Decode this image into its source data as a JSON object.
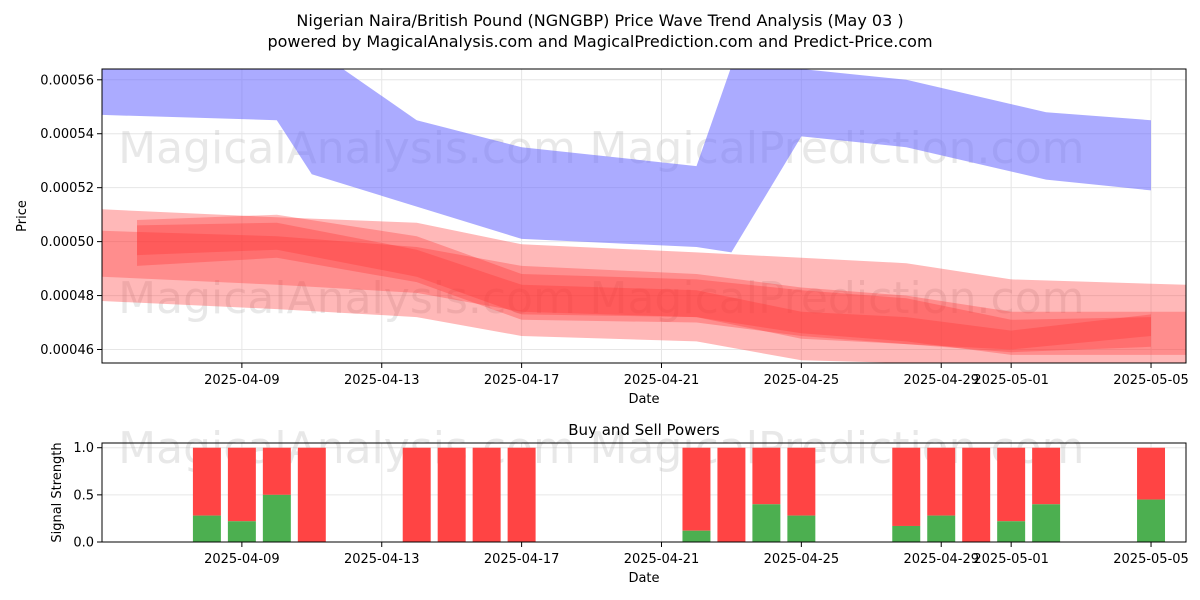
{
  "title_line1": "Nigerian Naira/British Pound (NGNGBP) Price Wave Trend Analysis (May 03 )",
  "title_line2": "powered by MagicalAnalysis.com and MagicalPrediction.com and Predict-Price.com",
  "watermarks": [
    "MagicalAnalysis.com",
    "MagicalPrediction.com"
  ],
  "colors": {
    "blue_band": "#6666ff",
    "red_band": "#ff3333",
    "buy": "#4caf50",
    "sell": "#ff4444",
    "grid": "#e6e6e6"
  },
  "chart_data": [
    {
      "type": "area",
      "title": "",
      "xlabel": "Date",
      "ylabel": "Price",
      "xlim": [
        "2025-04-05",
        "2025-05-06"
      ],
      "ylim": [
        0.000455,
        0.000564
      ],
      "grid": true,
      "x_tick_labels": [
        "2025-04-09",
        "2025-04-13",
        "2025-04-17",
        "2025-04-21",
        "2025-04-25",
        "2025-04-29",
        "2025-05-01",
        "2025-05-05"
      ],
      "y_tick_labels": [
        "0.00046",
        "0.00048",
        "0.00050",
        "0.00052",
        "0.00054",
        "0.00056"
      ],
      "blue_band": {
        "x": [
          "2025-04-05",
          "2025-04-10",
          "2025-04-11",
          "2025-04-14",
          "2025-04-17",
          "2025-04-22",
          "2025-04-23",
          "2025-04-25",
          "2025-04-28",
          "2025-05-02",
          "2025-05-05"
        ],
        "upper": [
          0.000572,
          0.000572,
          0.000572,
          0.000545,
          0.000535,
          0.000528,
          0.000565,
          0.000564,
          0.00056,
          0.000548,
          0.000545
        ],
        "lower": [
          0.000547,
          0.000545,
          0.000525,
          0.000513,
          0.000501,
          0.000498,
          0.000496,
          0.000539,
          0.000535,
          0.000523,
          0.000519
        ]
      },
      "red_bands": [
        {
          "x": [
            "2025-04-05",
            "2025-04-10",
            "2025-04-14",
            "2025-04-17",
            "2025-04-22",
            "2025-04-25",
            "2025-04-28",
            "2025-05-01",
            "2025-05-06"
          ],
          "upper": [
            0.000512,
            0.000509,
            0.000507,
            0.000499,
            0.000496,
            0.000494,
            0.000492,
            0.000486,
            0.000484
          ],
          "lower": [
            0.000478,
            0.000475,
            0.000472,
            0.000465,
            0.000463,
            0.000456,
            0.000455,
            0.000455,
            0.000455
          ]
        },
        {
          "x": [
            "2025-04-05",
            "2025-04-10",
            "2025-04-14",
            "2025-04-17",
            "2025-04-22",
            "2025-04-25",
            "2025-04-28",
            "2025-05-01",
            "2025-05-06"
          ],
          "upper": [
            0.000504,
            0.000502,
            0.000498,
            0.000491,
            0.000488,
            0.000483,
            0.00048,
            0.000474,
            0.000474
          ],
          "lower": [
            0.000487,
            0.000484,
            0.000481,
            0.000474,
            0.000472,
            0.000466,
            0.000463,
            0.000458,
            0.000458
          ]
        },
        {
          "x": [
            "2025-04-06",
            "2025-04-10",
            "2025-04-14",
            "2025-04-17",
            "2025-04-22",
            "2025-04-25",
            "2025-04-28",
            "2025-05-01",
            "2025-05-05"
          ],
          "upper": [
            0.000508,
            0.00051,
            0.000502,
            0.000488,
            0.000486,
            0.000482,
            0.000479,
            0.000471,
            0.000472
          ],
          "lower": [
            0.000491,
            0.000494,
            0.000485,
            0.000471,
            0.00047,
            0.000465,
            0.000462,
            0.000459,
            0.000461
          ]
        },
        {
          "x": [
            "2025-04-06",
            "2025-04-10",
            "2025-04-14",
            "2025-04-17",
            "2025-04-22",
            "2025-04-25",
            "2025-04-28",
            "2025-05-01",
            "2025-05-05"
          ],
          "upper": [
            0.000506,
            0.000507,
            0.000497,
            0.000484,
            0.000482,
            0.000474,
            0.000472,
            0.000467,
            0.000473
          ],
          "lower": [
            0.000495,
            0.000497,
            0.000487,
            0.000473,
            0.000472,
            0.000464,
            0.000462,
            0.00046,
            0.000465
          ]
        }
      ]
    },
    {
      "type": "bar",
      "title": "Buy and Sell Powers",
      "xlabel": "Date",
      "ylabel": "Signal Strength",
      "xlim": [
        "2025-04-05",
        "2025-05-06"
      ],
      "ylim": [
        0,
        1.05
      ],
      "grid": true,
      "x_tick_labels": [
        "2025-04-09",
        "2025-04-13",
        "2025-04-17",
        "2025-04-21",
        "2025-04-25",
        "2025-04-29",
        "2025-05-01",
        "2025-05-05"
      ],
      "y_tick_labels": [
        "0.0",
        "0.5",
        "1.0"
      ],
      "x": [
        "2025-04-08",
        "2025-04-09",
        "2025-04-10",
        "2025-04-11",
        "2025-04-14",
        "2025-04-15",
        "2025-04-16",
        "2025-04-17",
        "2025-04-22",
        "2025-04-23",
        "2025-04-24",
        "2025-04-25",
        "2025-04-28",
        "2025-04-29",
        "2025-04-30",
        "2025-05-01",
        "2025-05-02",
        "2025-05-05"
      ],
      "series": [
        {
          "name": "Buy",
          "values": [
            0.28,
            0.22,
            0.5,
            0.0,
            0.0,
            0.0,
            0.0,
            0.0,
            0.12,
            0.0,
            0.4,
            0.28,
            0.17,
            0.28,
            0.0,
            0.22,
            0.4,
            0.45
          ]
        },
        {
          "name": "Sell",
          "values": [
            0.72,
            0.78,
            0.5,
            1.0,
            1.0,
            1.0,
            1.0,
            1.0,
            0.88,
            1.0,
            0.6,
            0.72,
            0.83,
            0.72,
            1.0,
            0.78,
            0.6,
            0.55
          ]
        }
      ]
    }
  ]
}
